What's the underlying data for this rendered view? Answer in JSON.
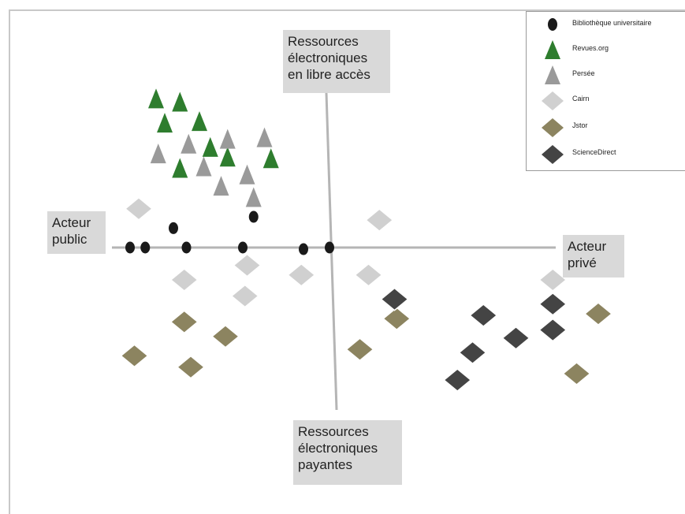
{
  "axes": {
    "top_label": [
      "Ressources",
      "électroniques",
      "en libre accès"
    ],
    "bottom_label": [
      "Ressources",
      "électroniques",
      "payantes"
    ],
    "left_label": [
      "Acteur",
      "public"
    ],
    "right_label": [
      "Acteur",
      "privé"
    ]
  },
  "legend": [
    {
      "label": "Bibliothèque universitaire",
      "symbol": "dot",
      "color": "#1a1a1a"
    },
    {
      "label": "Revues.org",
      "symbol": "triangle",
      "color": "#2e7d2e"
    },
    {
      "label": "Persée",
      "symbol": "triangle",
      "color": "#9a9a9a"
    },
    {
      "label": "Cairn",
      "symbol": "diamond",
      "color": "#d0d0d0"
    },
    {
      "label": "Jstor",
      "symbol": "diamond",
      "color": "#8c8460"
    },
    {
      "label": "ScienceDirect",
      "symbol": "diamond",
      "color": "#444444"
    }
  ],
  "chart_data": {
    "type": "scatter",
    "axes_range": {
      "x": [
        -10,
        10
      ],
      "y": [
        -10,
        10
      ]
    },
    "series": [
      {
        "name": "Bibliothèque universitaire",
        "points": [
          [
            -9.2,
            0
          ],
          [
            -8.5,
            0
          ],
          [
            -6.6,
            0
          ],
          [
            -7.2,
            1.2
          ],
          [
            -4.0,
            0
          ],
          [
            -3.5,
            1.9
          ],
          [
            -1.2,
            -0.1
          ],
          [
            0,
            0
          ]
        ]
      },
      {
        "name": "Revues.org",
        "points": [
          [
            -8.0,
            9.2
          ],
          [
            -6.9,
            9.0
          ],
          [
            -7.6,
            7.7
          ],
          [
            -6.0,
            7.8
          ],
          [
            -5.5,
            6.2
          ],
          [
            -4.7,
            5.6
          ],
          [
            -6.9,
            4.9
          ],
          [
            -2.7,
            5.5
          ]
        ]
      },
      {
        "name": "Persée",
        "points": [
          [
            -4.7,
            6.7
          ],
          [
            -3.0,
            6.8
          ],
          [
            -6.5,
            6.4
          ],
          [
            -7.9,
            5.8
          ],
          [
            -5.8,
            5.0
          ],
          [
            -3.8,
            4.5
          ],
          [
            -5.0,
            3.8
          ],
          [
            -3.5,
            3.1
          ]
        ]
      },
      {
        "name": "Cairn",
        "points": [
          [
            -8.8,
            2.4
          ],
          [
            2.3,
            1.7
          ],
          [
            -6.7,
            -2.0
          ],
          [
            -3.8,
            -1.1
          ],
          [
            -1.3,
            -1.7
          ],
          [
            1.8,
            -1.7
          ],
          [
            -3.9,
            -3.0
          ],
          [
            10.3,
            -2.0
          ]
        ]
      },
      {
        "name": "Jstor",
        "points": [
          [
            -6.7,
            -4.6
          ],
          [
            -4.8,
            -5.5
          ],
          [
            -9.0,
            -6.7
          ],
          [
            -6.4,
            -7.4
          ],
          [
            3.1,
            -4.4
          ],
          [
            1.4,
            -6.3
          ],
          [
            12.4,
            -4.1
          ],
          [
            11.4,
            -7.8
          ]
        ]
      },
      {
        "name": "ScienceDirect",
        "points": [
          [
            3.0,
            -3.2
          ],
          [
            7.1,
            -4.2
          ],
          [
            10.3,
            -3.5
          ],
          [
            10.3,
            -5.1
          ],
          [
            8.6,
            -5.6
          ],
          [
            6.6,
            -6.5
          ],
          [
            5.9,
            -8.2
          ]
        ]
      }
    ]
  }
}
